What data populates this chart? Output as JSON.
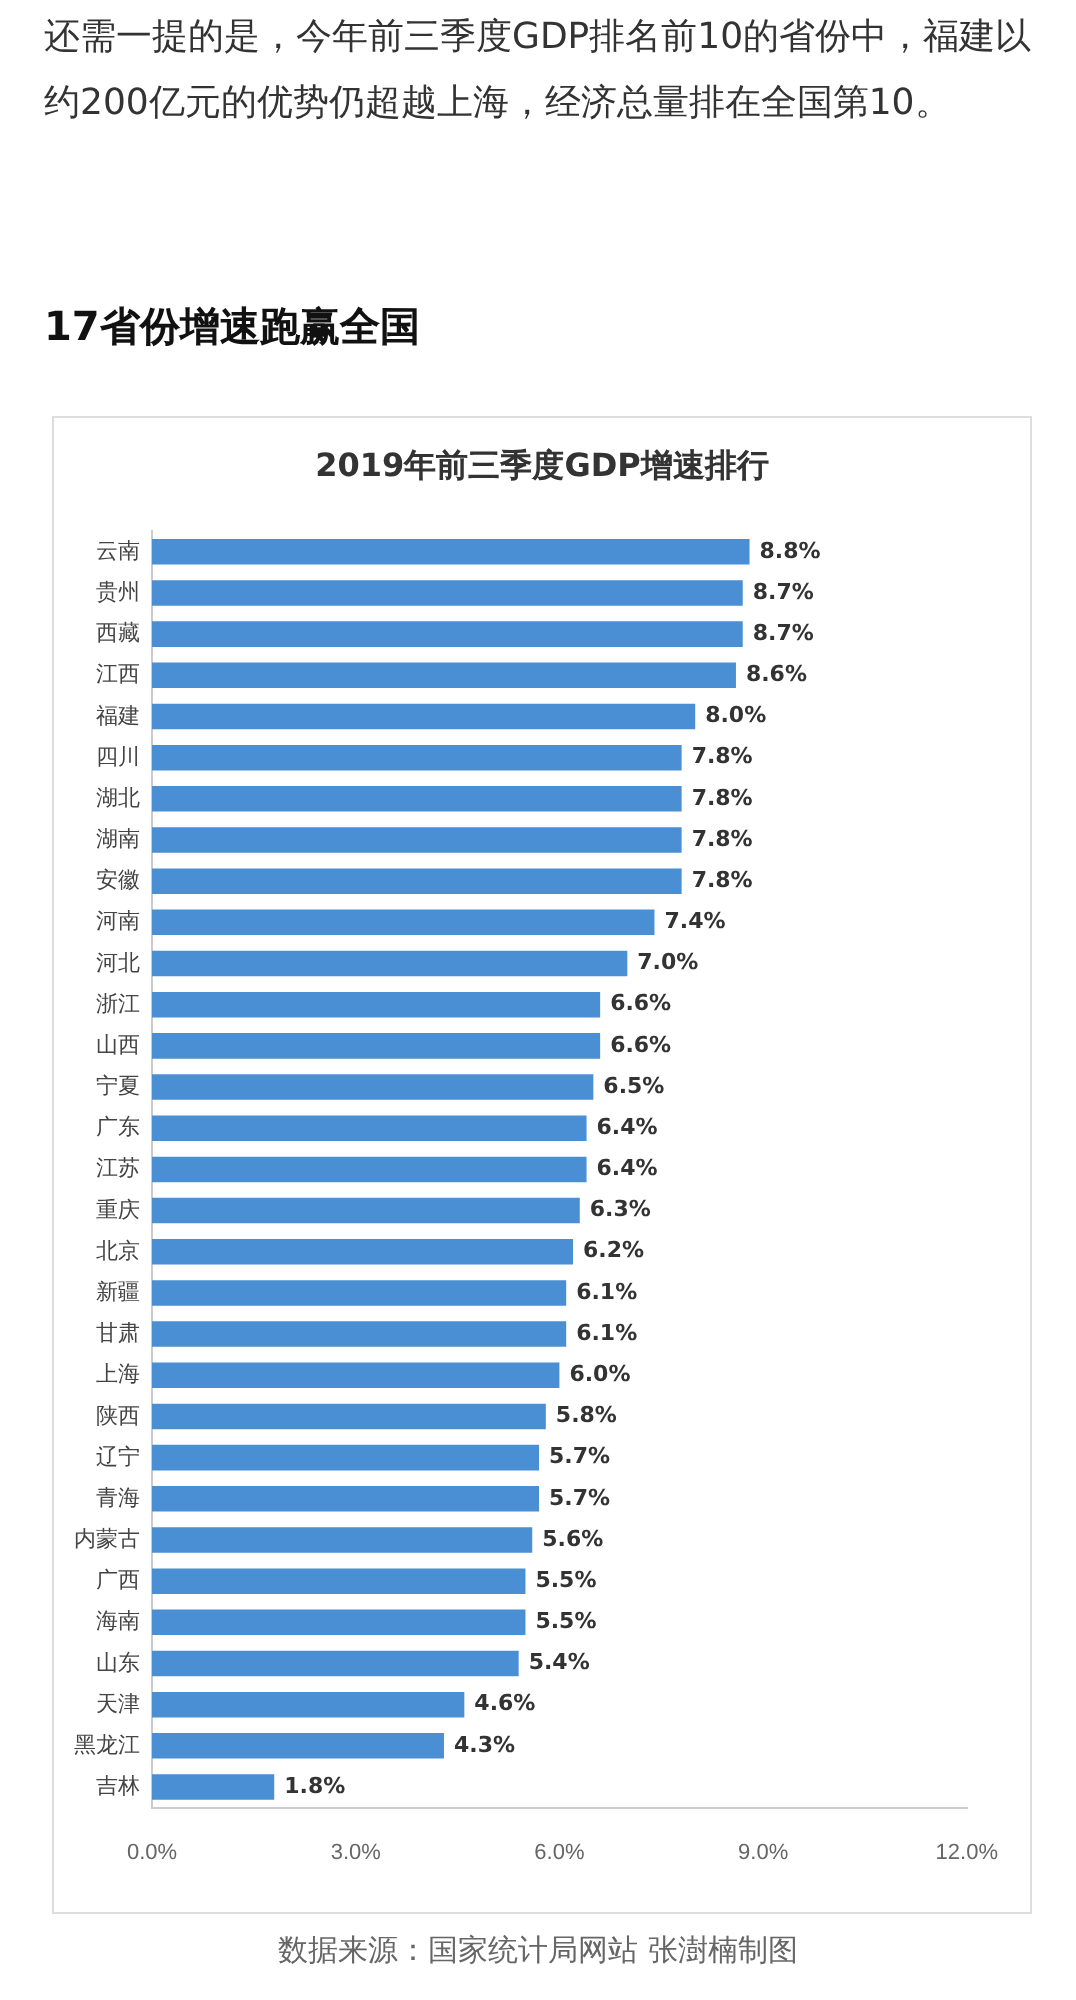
{
  "chart_data": {
    "type": "bar",
    "orientation": "horizontal",
    "title": "2019年前三季度GDP增速排行",
    "annotations": [
      "还需一提的是，今年前三季度GDP排名前10的省份中，福建以约200亿元的优势仍超越上海，经济总量排在全国第10。",
      "17省份增速跑赢全国",
      "数据来源：国家统计局网站 张澍楠制图"
    ],
    "categories": [
      "云南",
      "贵州",
      "西藏",
      "江西",
      "福建",
      "四川",
      "湖北",
      "湖南",
      "安徽",
      "河南",
      "河北",
      "浙江",
      "山西",
      "宁夏",
      "广东",
      "江苏",
      "重庆",
      "北京",
      "新疆",
      "甘肃",
      "上海",
      "陕西",
      "辽宁",
      "青海",
      "内蒙古",
      "广西",
      "海南",
      "山东",
      "天津",
      "黑龙江",
      "吉林"
    ],
    "values": [
      8.8,
      8.7,
      8.7,
      8.6,
      8.0,
      7.8,
      7.8,
      7.8,
      7.8,
      7.4,
      7.0,
      6.6,
      6.6,
      6.5,
      6.4,
      6.4,
      6.3,
      6.2,
      6.1,
      6.1,
      6.0,
      5.8,
      5.7,
      5.7,
      5.6,
      5.5,
      5.5,
      5.4,
      4.6,
      4.3,
      1.8
    ],
    "value_labels": [
      "8.8%",
      "8.7%",
      "8.7%",
      "8.6%",
      "8.0%",
      "7.8%",
      "7.8%",
      "7.8%",
      "7.8%",
      "7.4%",
      "7.0%",
      "6.6%",
      "6.6%",
      "6.5%",
      "6.4%",
      "6.4%",
      "6.3%",
      "6.2%",
      "6.1%",
      "6.1%",
      "6.0%",
      "5.8%",
      "5.7%",
      "5.7%",
      "5.6%",
      "5.5%",
      "5.5%",
      "5.4%",
      "4.6%",
      "4.3%",
      "1.8%"
    ],
    "color": "#4a8fd4",
    "xlim": [
      0,
      12
    ],
    "xticks": [
      {
        "value": 0,
        "label": "0.0%"
      },
      {
        "value": 3,
        "label": "3.0%"
      },
      {
        "value": 6,
        "label": "6.0%"
      },
      {
        "value": 9,
        "label": "9.0%"
      },
      {
        "value": 12,
        "label": "12.0%"
      }
    ],
    "grid": false,
    "legend": false
  }
}
